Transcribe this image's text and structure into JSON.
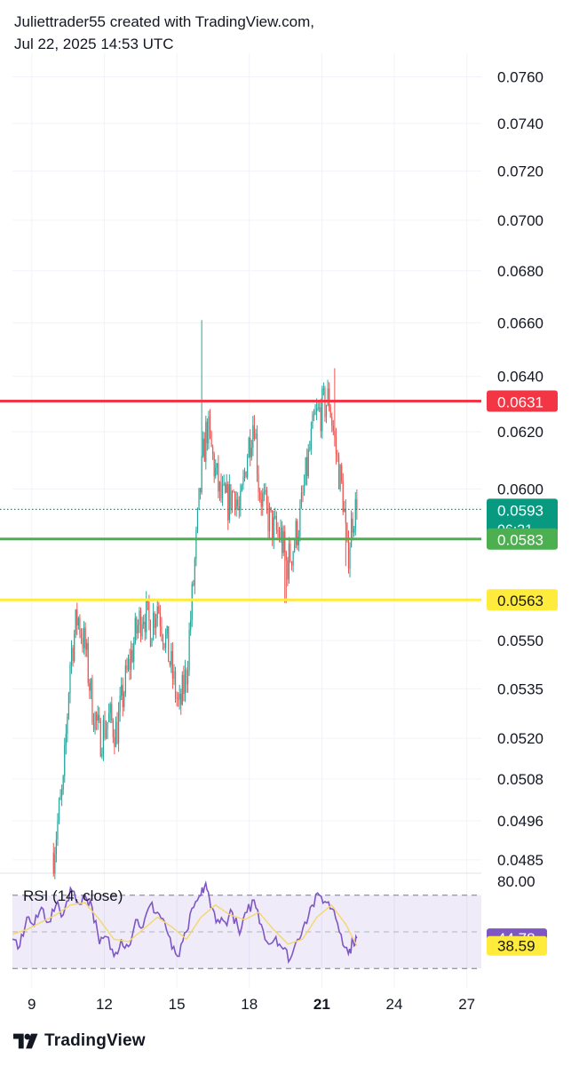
{
  "header": {
    "line1": "Juliettrader55 created with TradingView.com,",
    "line2": "Jul 22, 2025 14:53 UTC"
  },
  "footer": {
    "brand": "TradingView"
  },
  "colors": {
    "up": "#26a69a",
    "down": "#ef5350",
    "resistance": "#f23645",
    "support": "#4caf50",
    "yellow": "#ffeb3b",
    "current": "#089981",
    "rsi": "#7e57c2",
    "rsi_ma": "#f5d76e",
    "grid": "#f0f3fa",
    "text": "#131722"
  },
  "chart_data": [
    {
      "type": "candlestick",
      "y_scale": "log",
      "ylim": [
        0.0482,
        0.0768
      ],
      "y_ticks": [
        "0.0760",
        "0.0740",
        "0.0720",
        "0.0700",
        "0.0680",
        "0.0660",
        "0.0640",
        "0.0620",
        "0.0600",
        "0.0550",
        "0.0535",
        "0.0520",
        "0.0508",
        "0.0496",
        "0.0485"
      ],
      "x_axis": {
        "unit": "day",
        "range": [
          8.2,
          27.6
        ],
        "ticks": [
          {
            "value": 9,
            "label": "9"
          },
          {
            "value": 12,
            "label": "12"
          },
          {
            "value": 15,
            "label": "15"
          },
          {
            "value": 18,
            "label": "18"
          },
          {
            "value": 21,
            "label": "21",
            "bold": true
          },
          {
            "value": 24,
            "label": "24"
          },
          {
            "value": 27,
            "label": "27"
          }
        ]
      },
      "price_path": [
        [
          9.9,
          0.0487
        ],
        [
          10.1,
          0.0497
        ],
        [
          10.3,
          0.0505
        ],
        [
          10.6,
          0.0545
        ],
        [
          10.9,
          0.0558
        ],
        [
          11.2,
          0.0548
        ],
        [
          11.5,
          0.053
        ],
        [
          11.8,
          0.052
        ],
        [
          12.2,
          0.0526
        ],
        [
          12.5,
          0.0522
        ],
        [
          12.9,
          0.0538
        ],
        [
          13.3,
          0.0552
        ],
        [
          13.6,
          0.056
        ],
        [
          13.9,
          0.0554
        ],
        [
          14.2,
          0.0562
        ],
        [
          14.6,
          0.0548
        ],
        [
          14.9,
          0.0536
        ],
        [
          15.1,
          0.0528
        ],
        [
          15.4,
          0.054
        ],
        [
          15.7,
          0.057
        ],
        [
          15.95,
          0.0598
        ],
        [
          16.1,
          0.0612
        ],
        [
          16.25,
          0.0622
        ],
        [
          16.5,
          0.061
        ],
        [
          16.8,
          0.0597
        ],
        [
          17.1,
          0.0595
        ],
        [
          17.4,
          0.06
        ],
        [
          17.6,
          0.059
        ],
        [
          17.9,
          0.0612
        ],
        [
          18.2,
          0.0626
        ],
        [
          18.4,
          0.06
        ],
        [
          18.7,
          0.0592
        ],
        [
          19.0,
          0.0586
        ],
        [
          19.3,
          0.0584
        ],
        [
          19.55,
          0.0574
        ],
        [
          19.8,
          0.058
        ],
        [
          20.1,
          0.059
        ],
        [
          20.4,
          0.0608
        ],
        [
          20.7,
          0.0624
        ],
        [
          21.0,
          0.0628
        ],
        [
          21.3,
          0.0632
        ],
        [
          21.6,
          0.0612
        ],
        [
          21.9,
          0.0596
        ],
        [
          22.05,
          0.0576
        ],
        [
          22.3,
          0.0592
        ],
        [
          22.45,
          0.0593
        ]
      ],
      "spikes": [
        {
          "x": 16.05,
          "high": 0.0661
        },
        {
          "x": 21.55,
          "high": 0.0643
        },
        {
          "x": 19.5,
          "low": 0.0562
        },
        {
          "x": 22.0,
          "low": 0.0574
        },
        {
          "x": 12.6,
          "low": 0.0516
        }
      ],
      "horizontal_lines": [
        {
          "name": "resistance",
          "value": 0.0631,
          "label": "0.0631",
          "color": "#f23645",
          "style": "solid"
        },
        {
          "name": "current-price",
          "value": 0.0593,
          "label": "0.0593",
          "sublabel": "06:31",
          "color": "#089981",
          "style": "dotted"
        },
        {
          "name": "support",
          "value": 0.0583,
          "label": "0.0583",
          "color": "#4caf50",
          "style": "solid"
        },
        {
          "name": "yellow-level",
          "value": 0.0563,
          "label": "0.0563",
          "color": "#ffeb3b",
          "style": "solid"
        }
      ]
    },
    {
      "type": "line",
      "title": "RSI (14, close)",
      "ylim": [
        10,
        90
      ],
      "bands": {
        "upper": 80,
        "middle": 50,
        "lower": 20
      },
      "y_tick_label": "80.00",
      "current_labels": [
        {
          "name": "rsi-value",
          "value": 44.78,
          "label": "44.78",
          "color": "#7e57c2"
        },
        {
          "name": "rsi-ma-value",
          "value": 38.59,
          "label": "38.59",
          "color": "#ffeb3b"
        }
      ],
      "series": [
        {
          "name": "RSI",
          "color": "#7e57c2",
          "points": [
            [
              8.2,
              44
            ],
            [
              8.5,
              38
            ],
            [
              8.8,
              62
            ],
            [
              9.1,
              55
            ],
            [
              9.4,
              70
            ],
            [
              9.7,
              58
            ],
            [
              10.0,
              72
            ],
            [
              10.3,
              64
            ],
            [
              10.6,
              86
            ],
            [
              10.9,
              74
            ],
            [
              11.2,
              80
            ],
            [
              11.5,
              70
            ],
            [
              11.8,
              40
            ],
            [
              12.1,
              46
            ],
            [
              12.4,
              30
            ],
            [
              12.7,
              44
            ],
            [
              13.0,
              38
            ],
            [
              13.3,
              60
            ],
            [
              13.6,
              54
            ],
            [
              13.9,
              72
            ],
            [
              14.2,
              66
            ],
            [
              14.5,
              58
            ],
            [
              14.8,
              36
            ],
            [
              15.1,
              30
            ],
            [
              15.4,
              50
            ],
            [
              15.7,
              70
            ],
            [
              16.0,
              80
            ],
            [
              16.2,
              90
            ],
            [
              16.4,
              70
            ],
            [
              16.7,
              60
            ],
            [
              17.0,
              58
            ],
            [
              17.3,
              66
            ],
            [
              17.6,
              48
            ],
            [
              17.9,
              66
            ],
            [
              18.2,
              76
            ],
            [
              18.5,
              56
            ],
            [
              18.8,
              40
            ],
            [
              19.1,
              46
            ],
            [
              19.4,
              36
            ],
            [
              19.7,
              28
            ],
            [
              20.0,
              44
            ],
            [
              20.3,
              58
            ],
            [
              20.6,
              72
            ],
            [
              20.9,
              80
            ],
            [
              21.2,
              74
            ],
            [
              21.5,
              68
            ],
            [
              21.8,
              48
            ],
            [
              22.1,
              32
            ],
            [
              22.3,
              42
            ],
            [
              22.45,
              44.78
            ]
          ]
        },
        {
          "name": "RSI MA",
          "color": "#f5d76e",
          "points": [
            [
              8.2,
              48
            ],
            [
              8.8,
              52
            ],
            [
              9.4,
              58
            ],
            [
              10.0,
              64
            ],
            [
              10.6,
              72
            ],
            [
              11.2,
              74
            ],
            [
              11.8,
              60
            ],
            [
              12.4,
              44
            ],
            [
              13.0,
              42
            ],
            [
              13.6,
              52
            ],
            [
              14.2,
              62
            ],
            [
              14.8,
              54
            ],
            [
              15.4,
              44
            ],
            [
              16.0,
              62
            ],
            [
              16.6,
              72
            ],
            [
              17.2,
              64
            ],
            [
              17.8,
              60
            ],
            [
              18.4,
              66
            ],
            [
              19.0,
              52
            ],
            [
              19.6,
              40
            ],
            [
              20.2,
              44
            ],
            [
              20.8,
              62
            ],
            [
              21.4,
              72
            ],
            [
              22.0,
              56
            ],
            [
              22.45,
              38.59
            ]
          ]
        }
      ]
    }
  ]
}
